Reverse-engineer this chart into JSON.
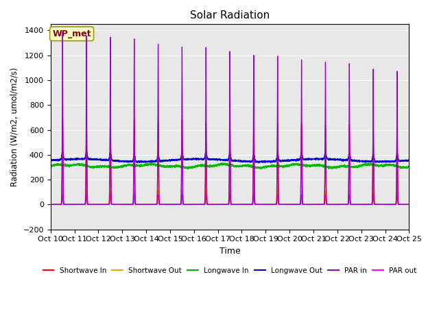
{
  "title": "Solar Radiation",
  "xlabel": "Time",
  "ylabel": "Radiation (W/m2, umol/m2/s)",
  "ylim": [
    -200,
    1450
  ],
  "xlim": [
    0,
    15
  ],
  "xtick_labels": [
    "Oct 10",
    "Oct 11",
    "Oct 12",
    "Oct 13",
    "Oct 14",
    "Oct 15",
    "Oct 16",
    "Oct 17",
    "Oct 18",
    "Oct 19",
    "Oct 20",
    "Oct 21",
    "Oct 22",
    "Oct 23",
    "Oct 24",
    "Oct 25"
  ],
  "ytick_vals": [
    -200,
    0,
    200,
    400,
    600,
    800,
    1000,
    1200,
    1400
  ],
  "annotation_text": "WP_met",
  "annotation_color": "#8B0000",
  "annotation_bg": "#FFFFCC",
  "background_color": "#E8E8E8",
  "colors": {
    "shortwave_in": "#FF0000",
    "shortwave_out": "#FFA500",
    "longwave_in": "#00BB00",
    "longwave_out": "#0000CC",
    "par_in": "#9900CC",
    "par_out": "#FF00FF"
  },
  "legend_labels": [
    "Shortwave In",
    "Shortwave Out",
    "Longwave In",
    "Longwave Out",
    "PAR in",
    "PAR out"
  ],
  "num_days": 15,
  "shortwave_in_peak": 700,
  "shortwave_out_peak": 110,
  "longwave_in_base": 310,
  "longwave_in_amp": 30,
  "longwave_out_base": 355,
  "longwave_out_amp": 55,
  "par_in_peak": 1380,
  "par_out_peak": 80
}
